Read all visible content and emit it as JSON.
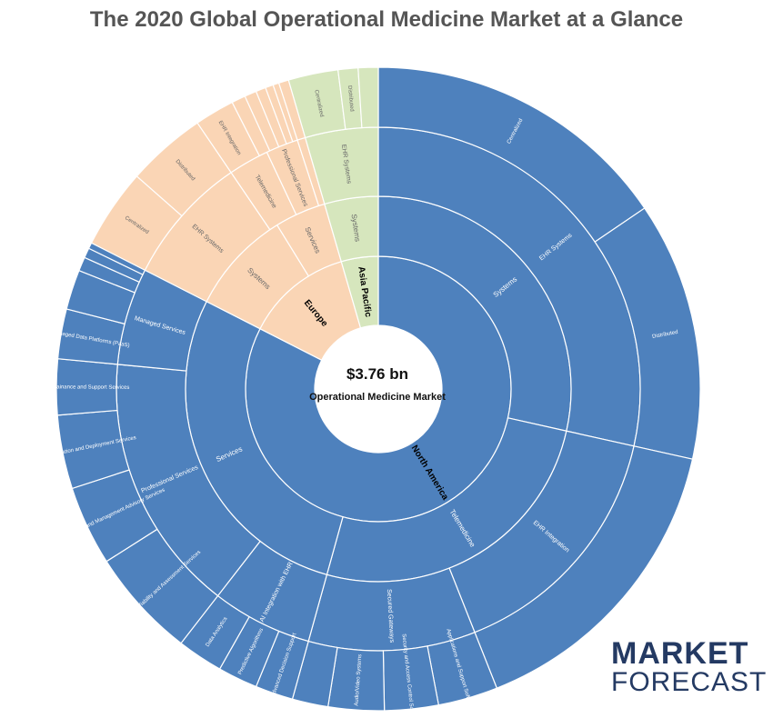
{
  "title": "The 2020 Global Operational Medicine Market at a Glance",
  "center": {
    "value": "$3.76 bn",
    "label": "Operational Medicine Market"
  },
  "logo": {
    "top": "MARKET",
    "bottom": "FORECAST"
  },
  "colors": {
    "north_america": "#4e81bd",
    "europe": "#fad5b5",
    "asia_pacific": "#d6e6bd",
    "separator": "#ffffff",
    "title": "#555555",
    "logo": "#243a63"
  },
  "chart_data": {
    "type": "sunburst",
    "title": "The 2020 Global Operational Medicine Market at a Glance",
    "total": "$3.76 bn",
    "rings": [
      {
        "level": 1,
        "segments": [
          {
            "id": "na",
            "name": "North America",
            "region": "north_america",
            "start": 0,
            "end": 0.825
          },
          {
            "id": "eu",
            "name": "Europe",
            "region": "europe",
            "start": 0.825,
            "end": 0.955
          },
          {
            "id": "ap",
            "name": "Asia Pacific",
            "region": "asia_pacific",
            "start": 0.955,
            "end": 1.0
          }
        ]
      },
      {
        "level": 2,
        "segments": [
          {
            "id": "na-systems",
            "name": "Systems",
            "region": "north_america",
            "start": 0,
            "end": 0.285
          },
          {
            "id": "na-telemed",
            "name": "Telemedicine",
            "region": "north_america",
            "start": 0.285,
            "end": 0.543
          },
          {
            "id": "na-services",
            "name": "Services",
            "region": "north_america",
            "start": 0.543,
            "end": 0.825
          },
          {
            "id": "eu-sys",
            "name": "Systems",
            "region": "europe",
            "start": 0.825,
            "end": 0.912
          },
          {
            "id": "eu-srv",
            "name": "Services",
            "region": "europe",
            "start": 0.912,
            "end": 0.955
          },
          {
            "id": "ap-sys",
            "name": "Systems",
            "region": "asia_pacific",
            "start": 0.955,
            "end": 1.0
          }
        ]
      },
      {
        "level": 3,
        "segments": [
          {
            "id": "na-ehr",
            "name": "EHR Systems",
            "region": "north_america",
            "start": 0,
            "end": 0.285
          },
          {
            "id": "na-ehrint",
            "name": "EHR Integration",
            "region": "north_america",
            "start": 0.285,
            "end": 0.44
          },
          {
            "id": "na-secgw",
            "name": "Secured Gateways",
            "region": "north_america",
            "start": 0.44,
            "end": 0.543
          },
          {
            "id": "na-aiehr",
            "name": "AI Integration with EHR",
            "region": "north_america",
            "start": 0.543,
            "end": 0.605
          },
          {
            "id": "na-prof",
            "name": "Professional Services",
            "region": "north_america",
            "start": 0.605,
            "end": 0.765
          },
          {
            "id": "na-managed",
            "name": "Managed Services",
            "region": "north_america",
            "start": 0.765,
            "end": 0.825
          },
          {
            "id": "eu-ehr",
            "name": "EHR Systems",
            "region": "europe",
            "start": 0.825,
            "end": 0.905
          },
          {
            "id": "eu-tele",
            "name": "Telemedicine",
            "region": "europe",
            "start": 0.905,
            "end": 0.93
          },
          {
            "id": "eu-prof",
            "name": "Professional Services",
            "region": "europe",
            "start": 0.93,
            "end": 0.95
          },
          {
            "id": "eu-misc",
            "name": "",
            "region": "europe",
            "start": 0.95,
            "end": 0.955
          },
          {
            "id": "ap-ehr",
            "name": "EHR Systems",
            "region": "asia_pacific",
            "start": 0.955,
            "end": 1.0
          }
        ]
      },
      {
        "level": 4,
        "segments": [
          {
            "id": "na-central",
            "name": "Centralized",
            "region": "north_america",
            "start": 0,
            "end": 0.155
          },
          {
            "id": "na-distrib",
            "name": "Distributed",
            "region": "north_america",
            "start": 0.155,
            "end": 0.285
          },
          {
            "id": "na-ehrint4",
            "name": "",
            "region": "north_america",
            "start": 0.285,
            "end": 0.44
          },
          {
            "id": "na-appsupport",
            "name": "Applications and Support Software",
            "region": "north_america",
            "start": 0.44,
            "end": 0.47
          },
          {
            "id": "na-secaccess",
            "name": "Security and Access Control Software",
            "region": "north_america",
            "start": 0.47,
            "end": 0.497
          },
          {
            "id": "na-audio",
            "name": "Audio/Video Systems",
            "region": "north_america",
            "start": 0.497,
            "end": 0.525
          },
          {
            "id": "na-secgw4",
            "name": "",
            "region": "north_america",
            "start": 0.525,
            "end": 0.543
          },
          {
            "id": "na-advdec",
            "name": "Advanced Decision Support",
            "region": "north_america",
            "start": 0.543,
            "end": 0.562
          },
          {
            "id": "na-predict",
            "name": "Predictive Algorithms",
            "region": "north_america",
            "start": 0.562,
            "end": 0.582
          },
          {
            "id": "na-dataan",
            "name": "Data Analytics",
            "region": "north_america",
            "start": 0.582,
            "end": 0.605
          },
          {
            "id": "na-projv",
            "name": "Project Viability and Assessment Services",
            "region": "north_america",
            "start": 0.605,
            "end": 0.66
          },
          {
            "id": "na-techm",
            "name": "Technical and Management Advisory Services",
            "region": "north_america",
            "start": 0.66,
            "end": 0.7
          },
          {
            "id": "na-install",
            "name": "Installation and Deployment Services",
            "region": "north_america",
            "start": 0.7,
            "end": 0.737
          },
          {
            "id": "na-maint",
            "name": "Maintainance and Support Services",
            "region": "north_america",
            "start": 0.737,
            "end": 0.765
          },
          {
            "id": "na-mdp",
            "name": "Managed Data Platforms (PaaS)",
            "region": "north_america",
            "start": 0.765,
            "end": 0.79
          },
          {
            "id": "na-m2",
            "name": "",
            "region": "north_america",
            "start": 0.79,
            "end": 0.81
          },
          {
            "id": "na-m3",
            "name": "",
            "region": "north_america",
            "start": 0.81,
            "end": 0.817
          },
          {
            "id": "na-m4",
            "name": "",
            "region": "north_america",
            "start": 0.817,
            "end": 0.822
          },
          {
            "id": "na-m5",
            "name": "",
            "region": "north_america",
            "start": 0.822,
            "end": 0.825
          },
          {
            "id": "eu-central",
            "name": "Centralized",
            "region": "europe",
            "start": 0.825,
            "end": 0.865
          },
          {
            "id": "eu-distrib",
            "name": "Distributed",
            "region": "europe",
            "start": 0.865,
            "end": 0.905
          },
          {
            "id": "eu-ehrint",
            "name": "EHR Integration",
            "region": "europe",
            "start": 0.905,
            "end": 0.925
          },
          {
            "id": "eu-l4a",
            "name": "",
            "region": "europe",
            "start": 0.925,
            "end": 0.932
          },
          {
            "id": "eu-l4b",
            "name": "",
            "region": "europe",
            "start": 0.932,
            "end": 0.938
          },
          {
            "id": "eu-l4c",
            "name": "",
            "region": "europe",
            "start": 0.938,
            "end": 0.943
          },
          {
            "id": "eu-l4d",
            "name": "",
            "region": "europe",
            "start": 0.943,
            "end": 0.947
          },
          {
            "id": "eu-l4e",
            "name": "",
            "region": "europe",
            "start": 0.947,
            "end": 0.95
          },
          {
            "id": "eu-l4f",
            "name": "",
            "region": "europe",
            "start": 0.95,
            "end": 0.955
          },
          {
            "id": "ap-central",
            "name": "Centralized",
            "region": "asia_pacific",
            "start": 0.955,
            "end": 0.98
          },
          {
            "id": "ap-distrib",
            "name": "Distributed",
            "region": "asia_pacific",
            "start": 0.98,
            "end": 0.99
          },
          {
            "id": "ap-l4c",
            "name": "",
            "region": "asia_pacific",
            "start": 0.99,
            "end": 1.0
          }
        ]
      }
    ]
  }
}
